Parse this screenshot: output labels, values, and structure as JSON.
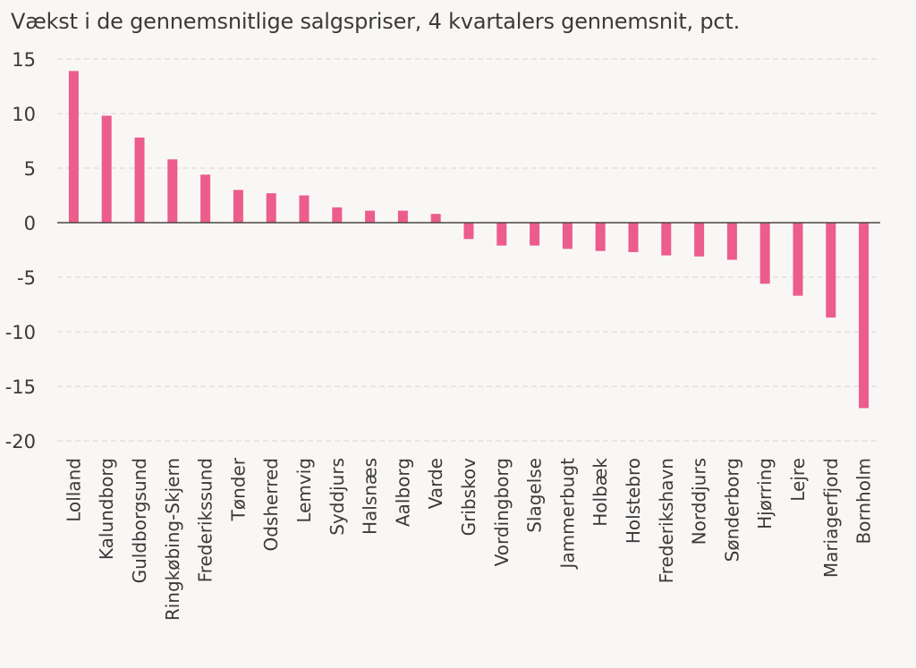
{
  "chart_data": {
    "type": "bar",
    "title": "Vækst i de gennemsnitlige salgspriser, 4 kvartalers gennemsnit, pct.",
    "xlabel": "",
    "ylabel": "",
    "ylim": [
      -20,
      15
    ],
    "yticks": [
      15,
      10,
      5,
      0,
      -5,
      -10,
      -15,
      -20
    ],
    "grid": true,
    "bar_color": "#ec5c8c",
    "categories": [
      "Lolland",
      "Kalundborg",
      "Guldborgsund",
      "Ringkøbing-Skjern",
      "Frederikssund",
      "Tønder",
      "Odsherred",
      "Lemvig",
      "Syddjurs",
      "Halsnæs",
      "Aalborg",
      "Varde",
      "Gribskov",
      "Vordingborg",
      "Slagelse",
      "Jammerbugt",
      "Holbæk",
      "Holstebro",
      "Frederikshavn",
      "Norddjurs",
      "Sønderborg",
      "Hjørring",
      "Lejre",
      "Mariagerfjord",
      "Bornholm"
    ],
    "values": [
      13.9,
      9.8,
      7.8,
      5.8,
      4.4,
      3.0,
      2.7,
      2.5,
      1.4,
      1.1,
      1.1,
      0.8,
      -1.5,
      -2.1,
      -2.1,
      -2.4,
      -2.6,
      -2.7,
      -3.0,
      -3.1,
      -3.4,
      -5.6,
      -6.7,
      -8.7,
      -17.0
    ]
  }
}
